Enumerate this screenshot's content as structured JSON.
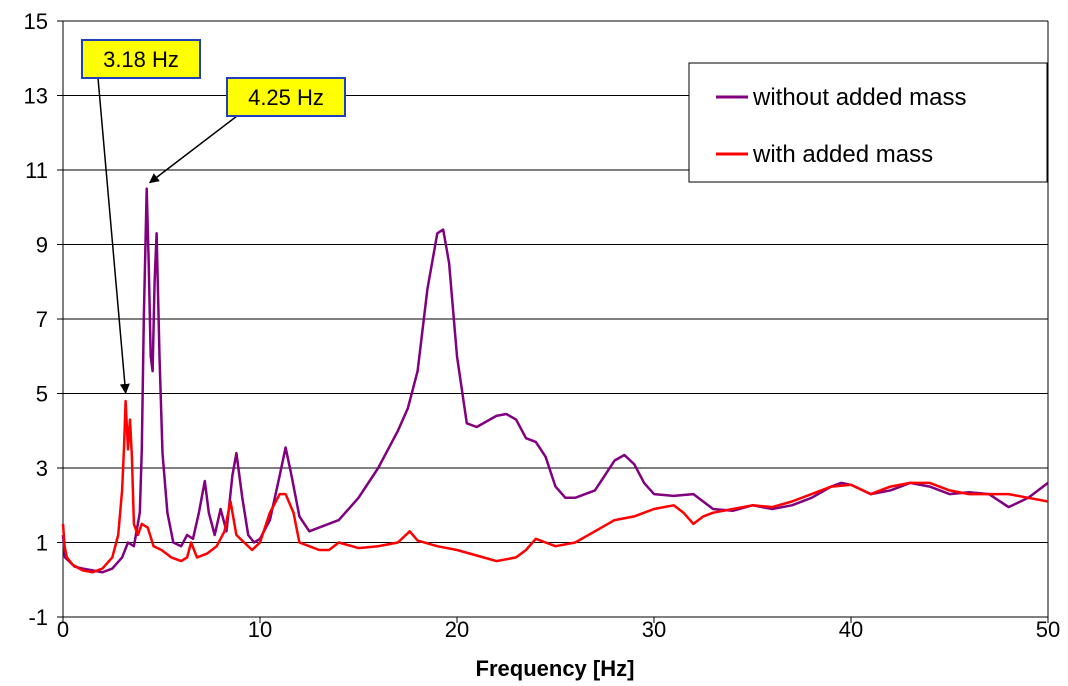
{
  "chart_data": {
    "type": "line",
    "title": "",
    "xlabel": "Frequency [Hz]",
    "ylabel": "",
    "xlim": [
      0,
      50
    ],
    "ylim": [
      -1,
      15
    ],
    "xticks": [
      0,
      10,
      20,
      30,
      40,
      50
    ],
    "yticks": [
      -1,
      1,
      3,
      5,
      7,
      9,
      11,
      13,
      15
    ],
    "grid": "horizontal",
    "legend": "top-right",
    "series": [
      {
        "name": "without added mass",
        "color": "#800080",
        "x": [
          0,
          0.1,
          0.3,
          0.6,
          1.0,
          1.5,
          2.0,
          2.5,
          3.0,
          3.3,
          3.6,
          3.9,
          4.0,
          4.1,
          4.25,
          4.35,
          4.45,
          4.55,
          4.65,
          4.75,
          4.9,
          5.05,
          5.3,
          5.6,
          6.0,
          6.3,
          6.6,
          6.9,
          7.2,
          7.4,
          7.7,
          8.0,
          8.3,
          8.6,
          8.8,
          9.1,
          9.4,
          9.7,
          10.0,
          10.5,
          11.0,
          11.3,
          11.6,
          12.0,
          12.5,
          13.0,
          14.0,
          15.0,
          16.0,
          17.0,
          17.5,
          18.0,
          18.5,
          19.0,
          19.3,
          19.6,
          20.0,
          20.5,
          21.0,
          22.0,
          22.5,
          23.0,
          23.5,
          24.0,
          24.5,
          25.0,
          25.5,
          26.0,
          27.0,
          27.5,
          28.0,
          28.5,
          29.0,
          29.5,
          30.0,
          31.0,
          32.0,
          33.0,
          34.0,
          35.0,
          36.0,
          37.0,
          38.0,
          39.0,
          39.5,
          40.0,
          41.0,
          42.0,
          43.0,
          44.0,
          45.0,
          46.0,
          47.0,
          48.0,
          49.0,
          50.0
        ],
        "y": [
          1.2,
          0.6,
          0.5,
          0.35,
          0.3,
          0.25,
          0.2,
          0.3,
          0.6,
          1.0,
          0.9,
          1.8,
          3.5,
          7.0,
          10.5,
          8.5,
          6.0,
          5.6,
          8.0,
          9.3,
          6.0,
          3.4,
          1.8,
          1.0,
          0.9,
          1.2,
          1.1,
          1.8,
          2.65,
          1.8,
          1.2,
          1.9,
          1.3,
          2.8,
          3.4,
          2.2,
          1.2,
          1.0,
          1.1,
          1.6,
          2.8,
          3.55,
          2.8,
          1.7,
          1.3,
          1.4,
          1.6,
          2.2,
          3.0,
          4.0,
          4.6,
          5.6,
          7.8,
          9.3,
          9.4,
          8.5,
          6.0,
          4.2,
          4.1,
          4.4,
          4.45,
          4.3,
          3.8,
          3.7,
          3.3,
          2.5,
          2.2,
          2.2,
          2.4,
          2.8,
          3.2,
          3.35,
          3.1,
          2.6,
          2.3,
          2.25,
          2.3,
          1.9,
          1.85,
          2.0,
          1.9,
          2.0,
          2.2,
          2.5,
          2.6,
          2.55,
          2.3,
          2.4,
          2.6,
          2.5,
          2.3,
          2.35,
          2.3,
          1.95,
          2.2,
          2.6
        ]
      },
      {
        "name": "with added mass",
        "color": "#ff0000",
        "x": [
          0,
          0.08,
          0.2,
          0.5,
          1.0,
          1.5,
          2.0,
          2.5,
          2.8,
          3.0,
          3.1,
          3.18,
          3.3,
          3.4,
          3.5,
          3.6,
          3.8,
          4.0,
          4.3,
          4.6,
          5.0,
          5.5,
          6.0,
          6.3,
          6.5,
          6.8,
          7.3,
          7.8,
          8.2,
          8.5,
          8.8,
          9.2,
          9.6,
          10.0,
          10.5,
          11.0,
          11.3,
          11.7,
          12.0,
          12.5,
          13.0,
          13.5,
          14.0,
          15.0,
          16.0,
          17.0,
          17.6,
          18.0,
          19.0,
          20.0,
          21.0,
          22.0,
          23.0,
          23.5,
          24.0,
          24.5,
          25.0,
          26.0,
          27.0,
          28.0,
          29.0,
          30.0,
          31.0,
          31.5,
          32.0,
          32.5,
          33.0,
          34.0,
          35.0,
          36.0,
          37.0,
          38.0,
          39.0,
          40.0,
          41.0,
          42.0,
          43.0,
          44.0,
          45.0,
          46.0,
          47.0,
          48.0,
          49.0,
          50.0
        ],
        "y": [
          1.5,
          0.9,
          0.6,
          0.4,
          0.25,
          0.2,
          0.3,
          0.6,
          1.2,
          2.4,
          3.6,
          4.8,
          3.5,
          4.3,
          3.3,
          1.5,
          1.2,
          1.5,
          1.4,
          0.9,
          0.8,
          0.6,
          0.5,
          0.6,
          1.0,
          0.6,
          0.7,
          0.9,
          1.3,
          2.1,
          1.2,
          1.0,
          0.8,
          1.0,
          1.8,
          2.3,
          2.3,
          1.8,
          1.0,
          0.9,
          0.8,
          0.8,
          1.0,
          0.85,
          0.9,
          1.0,
          1.3,
          1.05,
          0.9,
          0.8,
          0.65,
          0.5,
          0.6,
          0.8,
          1.1,
          1.0,
          0.9,
          1.0,
          1.3,
          1.6,
          1.7,
          1.9,
          2.0,
          1.8,
          1.5,
          1.7,
          1.8,
          1.9,
          2.0,
          1.95,
          2.1,
          2.3,
          2.5,
          2.55,
          2.3,
          2.5,
          2.6,
          2.6,
          2.4,
          2.3,
          2.3,
          2.3,
          2.2,
          2.1
        ]
      }
    ],
    "annotations": [
      {
        "text": "3.18 Hz",
        "target_x": 3.18,
        "target_y": 4.8
      },
      {
        "text": "4.25 Hz",
        "target_x": 4.25,
        "target_y": 10.5
      }
    ]
  }
}
